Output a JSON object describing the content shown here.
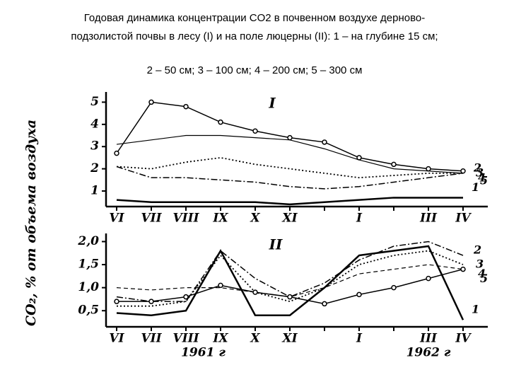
{
  "title": [
    "Годовая динамика концентрации CO2 в почвенном воздухе дерново-",
    "подзолистой почвы в лесу (I) и на поле люцерны (II): 1 – на глубине 15 см;",
    "2 – 50 см; 3 – 100 см; 4 – 200 см; 5 – 300 см"
  ],
  "y_label": "CO₂, % от объема воздуха",
  "chart_data": [
    {
      "type": "line",
      "panel_label": "I",
      "categories": [
        "VI",
        "VII",
        "VIII",
        "IX",
        "X",
        "XI",
        null,
        "I",
        null,
        "III",
        "IV"
      ],
      "ylim": [
        0.3,
        5.3
      ],
      "yticks": [
        1,
        2,
        3,
        4,
        5
      ],
      "series": [
        {
          "name": "1",
          "color": "#000000",
          "dash": "solid",
          "width": 2.5,
          "values": [
            0.6,
            0.5,
            0.5,
            0.5,
            0.5,
            0.4,
            0.5,
            0.6,
            0.7,
            0.7,
            0.7
          ]
        },
        {
          "name": "2",
          "color": "#000000",
          "dash": "dashdot",
          "width": 1.5,
          "values": [
            2.1,
            1.6,
            1.6,
            1.5,
            1.4,
            1.2,
            1.1,
            1.2,
            1.4,
            1.6,
            1.8
          ]
        },
        {
          "name": "3",
          "color": "#000000",
          "dash": "dotted",
          "width": 1.8,
          "values": [
            2.1,
            2.0,
            2.3,
            2.5,
            2.2,
            2.0,
            1.8,
            1.6,
            1.7,
            1.8,
            1.8
          ]
        },
        {
          "name": "4",
          "color": "#000000",
          "dash": "solid",
          "width": 1.2,
          "values": [
            3.1,
            3.3,
            3.5,
            3.5,
            3.4,
            3.3,
            2.9,
            2.4,
            2.0,
            1.9,
            1.8
          ]
        },
        {
          "name": "5",
          "color": "#000000",
          "dash": "circles",
          "width": 1.5,
          "values": [
            2.7,
            5.0,
            4.8,
            4.1,
            3.7,
            3.4,
            3.2,
            2.5,
            2.2,
            2.0,
            1.9
          ]
        }
      ]
    },
    {
      "type": "line",
      "panel_label": "II",
      "year_labels": [
        "1961 г",
        "1962 г"
      ],
      "categories": [
        "VI",
        "VII",
        "VIII",
        "IX",
        "X",
        "XI",
        null,
        "I",
        null,
        "III",
        "IV"
      ],
      "ylim": [
        0.15,
        2.1
      ],
      "yticks": [
        {
          "value": 0.5,
          "label": "0,5"
        },
        {
          "value": 1.0,
          "label": "1,0"
        },
        {
          "value": 1.5,
          "label": "1,5"
        },
        {
          "value": 2.0,
          "label": "2,0"
        }
      ],
      "series": [
        {
          "name": "1",
          "color": "#000000",
          "dash": "solid",
          "width": 2.5,
          "values": [
            0.45,
            0.4,
            0.5,
            1.8,
            0.4,
            0.4,
            1.0,
            1.7,
            1.8,
            1.9,
            0.3
          ]
        },
        {
          "name": "2",
          "color": "#000000",
          "dash": "dashdot",
          "width": 1.5,
          "values": [
            0.8,
            0.7,
            0.7,
            1.8,
            1.2,
            0.8,
            1.1,
            1.6,
            1.9,
            2.0,
            1.7
          ]
        },
        {
          "name": "3",
          "color": "#000000",
          "dash": "dotted",
          "width": 1.8,
          "values": [
            0.6,
            0.6,
            0.7,
            1.7,
            0.9,
            0.7,
            1.0,
            1.5,
            1.7,
            1.8,
            1.5
          ]
        },
        {
          "name": "4",
          "color": "#000000",
          "dash": "dashed",
          "width": 1.2,
          "values": [
            1.0,
            0.95,
            1.0,
            1.0,
            0.9,
            0.8,
            1.0,
            1.3,
            1.4,
            1.5,
            1.4
          ]
        },
        {
          "name": "5",
          "color": "#000000",
          "dash": "circles",
          "width": 1.5,
          "values": [
            0.7,
            0.7,
            0.8,
            1.05,
            0.9,
            0.8,
            0.65,
            0.85,
            1.0,
            1.2,
            1.4
          ]
        }
      ]
    }
  ]
}
